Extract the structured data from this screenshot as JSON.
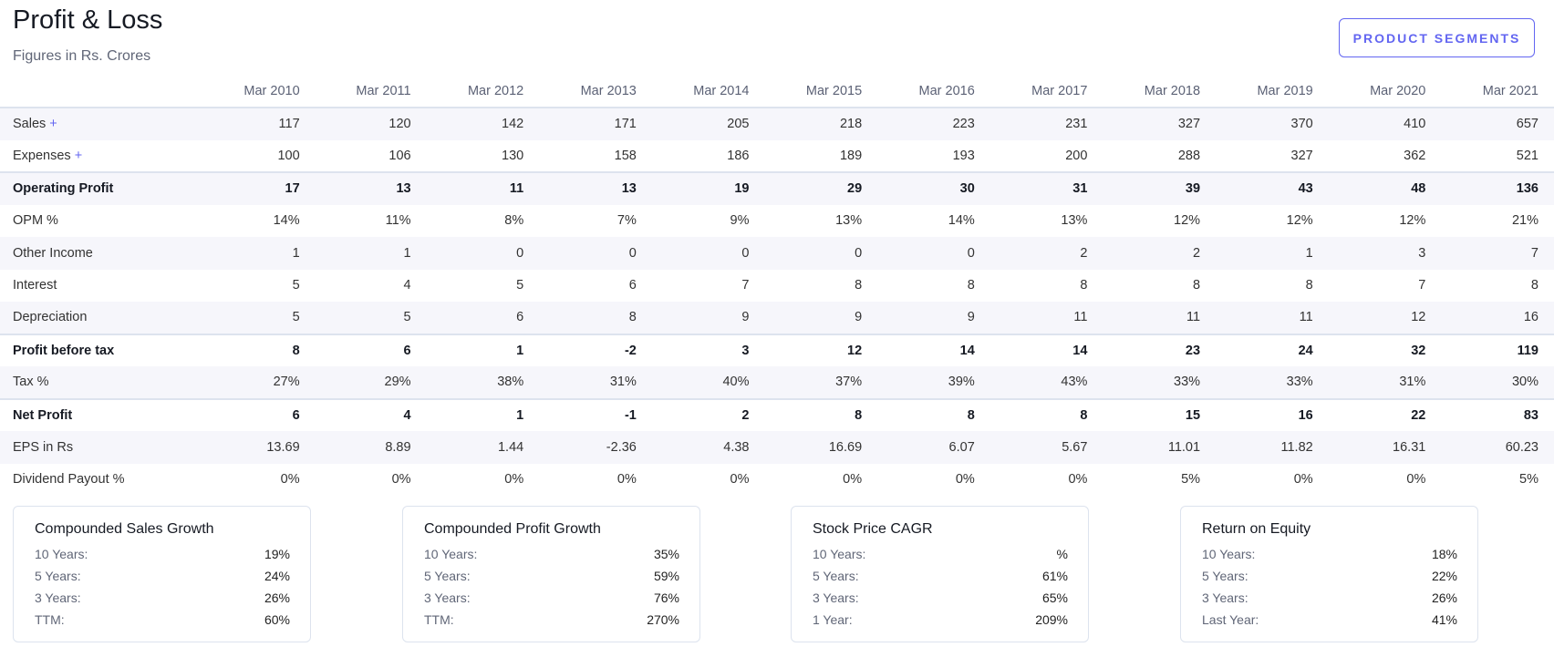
{
  "header": {
    "title": "Profit & Loss",
    "subtitle": "Figures in Rs. Crores",
    "button": "PRODUCT SEGMENTS"
  },
  "columns": [
    "Mar 2010",
    "Mar 2011",
    "Mar 2012",
    "Mar 2013",
    "Mar 2014",
    "Mar 2015",
    "Mar 2016",
    "Mar 2017",
    "Mar 2018",
    "Mar 2019",
    "Mar 2020",
    "Mar 2021"
  ],
  "rows": [
    {
      "label": "Sales",
      "expand": "+",
      "values": [
        "117",
        "120",
        "142",
        "171",
        "205",
        "218",
        "223",
        "231",
        "327",
        "370",
        "410",
        "657"
      ]
    },
    {
      "label": "Expenses",
      "expand": "+",
      "values": [
        "100",
        "106",
        "130",
        "158",
        "186",
        "189",
        "193",
        "200",
        "288",
        "327",
        "362",
        "521"
      ]
    },
    {
      "label": "Operating Profit",
      "values": [
        "17",
        "13",
        "11",
        "13",
        "19",
        "29",
        "30",
        "31",
        "39",
        "43",
        "48",
        "136"
      ]
    },
    {
      "label": "OPM %",
      "values": [
        "14%",
        "11%",
        "8%",
        "7%",
        "9%",
        "13%",
        "14%",
        "13%",
        "12%",
        "12%",
        "12%",
        "21%"
      ]
    },
    {
      "label": "Other Income",
      "values": [
        "1",
        "1",
        "0",
        "0",
        "0",
        "0",
        "0",
        "2",
        "2",
        "1",
        "3",
        "7"
      ]
    },
    {
      "label": "Interest",
      "values": [
        "5",
        "4",
        "5",
        "6",
        "7",
        "8",
        "8",
        "8",
        "8",
        "8",
        "7",
        "8"
      ]
    },
    {
      "label": "Depreciation",
      "values": [
        "5",
        "5",
        "6",
        "8",
        "9",
        "9",
        "9",
        "11",
        "11",
        "11",
        "12",
        "16"
      ]
    },
    {
      "label": "Profit before tax",
      "values": [
        "8",
        "6",
        "1",
        "-2",
        "3",
        "12",
        "14",
        "14",
        "23",
        "24",
        "32",
        "119"
      ]
    },
    {
      "label": "Tax %",
      "values": [
        "27%",
        "29%",
        "38%",
        "31%",
        "40%",
        "37%",
        "39%",
        "43%",
        "33%",
        "33%",
        "31%",
        "30%"
      ]
    },
    {
      "label": "Net Profit",
      "values": [
        "6",
        "4",
        "1",
        "-1",
        "2",
        "8",
        "8",
        "8",
        "15",
        "16",
        "22",
        "83"
      ]
    },
    {
      "label": "EPS in Rs",
      "values": [
        "13.69",
        "8.89",
        "1.44",
        "-2.36",
        "4.38",
        "16.69",
        "6.07",
        "5.67",
        "11.01",
        "11.82",
        "16.31",
        "60.23"
      ]
    },
    {
      "label": "Dividend Payout %",
      "values": [
        "0%",
        "0%",
        "0%",
        "0%",
        "0%",
        "0%",
        "0%",
        "0%",
        "5%",
        "0%",
        "0%",
        "5%"
      ]
    }
  ],
  "cards": [
    {
      "title": "Compounded Sales Growth",
      "items": [
        [
          "10 Years:",
          "19%"
        ],
        [
          "5 Years:",
          "24%"
        ],
        [
          "3 Years:",
          "26%"
        ],
        [
          "TTM:",
          "60%"
        ]
      ]
    },
    {
      "title": "Compounded Profit Growth",
      "items": [
        [
          "10 Years:",
          "35%"
        ],
        [
          "5 Years:",
          "59%"
        ],
        [
          "3 Years:",
          "76%"
        ],
        [
          "TTM:",
          "270%"
        ]
      ]
    },
    {
      "title": "Stock Price CAGR",
      "items": [
        [
          "10 Years:",
          "%"
        ],
        [
          "5 Years:",
          "61%"
        ],
        [
          "3 Years:",
          "65%"
        ],
        [
          "1 Year:",
          "209%"
        ]
      ]
    },
    {
      "title": "Return on Equity",
      "items": [
        [
          "10 Years:",
          "18%"
        ],
        [
          "5 Years:",
          "22%"
        ],
        [
          "3 Years:",
          "26%"
        ],
        [
          "Last Year:",
          "41%"
        ]
      ]
    }
  ],
  "colors": {
    "accent": "#6366f1",
    "row_shade": "#f6f6fb",
    "border": "#dde3ee"
  }
}
